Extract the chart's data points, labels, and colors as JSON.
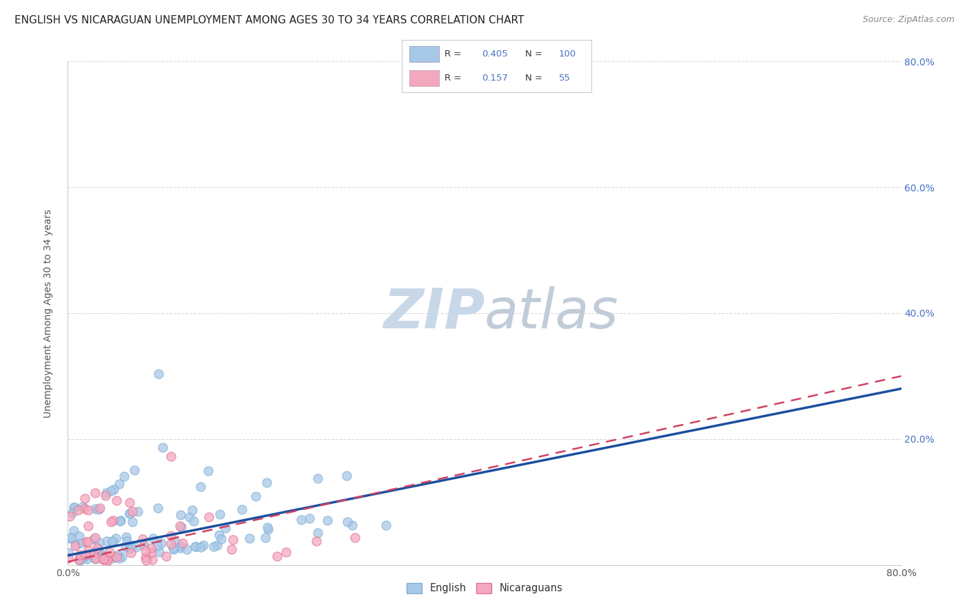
{
  "title": "ENGLISH VS NICARAGUAN UNEMPLOYMENT AMONG AGES 30 TO 34 YEARS CORRELATION CHART",
  "source": "Source: ZipAtlas.com",
  "ylabel": "Unemployment Among Ages 30 to 34 years",
  "xlim": [
    0.0,
    0.8
  ],
  "ylim": [
    0.0,
    0.8
  ],
  "english_R": 0.405,
  "english_N": 100,
  "nicaraguan_R": 0.157,
  "nicaraguan_N": 55,
  "english_color": "#a8c8e8",
  "english_edge_color": "#7aafd4",
  "nicaraguan_color": "#f4a8c0",
  "nicaraguan_edge_color": "#e07090",
  "english_line_color": "#1a4fa0",
  "nicaraguan_line_color": "#d04060",
  "watermark_zip_color": "#c8d8e8",
  "watermark_atlas_color": "#c0ccd8",
  "background_color": "#ffffff",
  "grid_color": "#d8d8d8",
  "title_fontsize": 11,
  "axis_label_fontsize": 10,
  "tick_fontsize": 10,
  "right_tick_color": "#4472c4",
  "legend_text_color": "#333333",
  "source_color": "#888888",
  "seed": 7
}
